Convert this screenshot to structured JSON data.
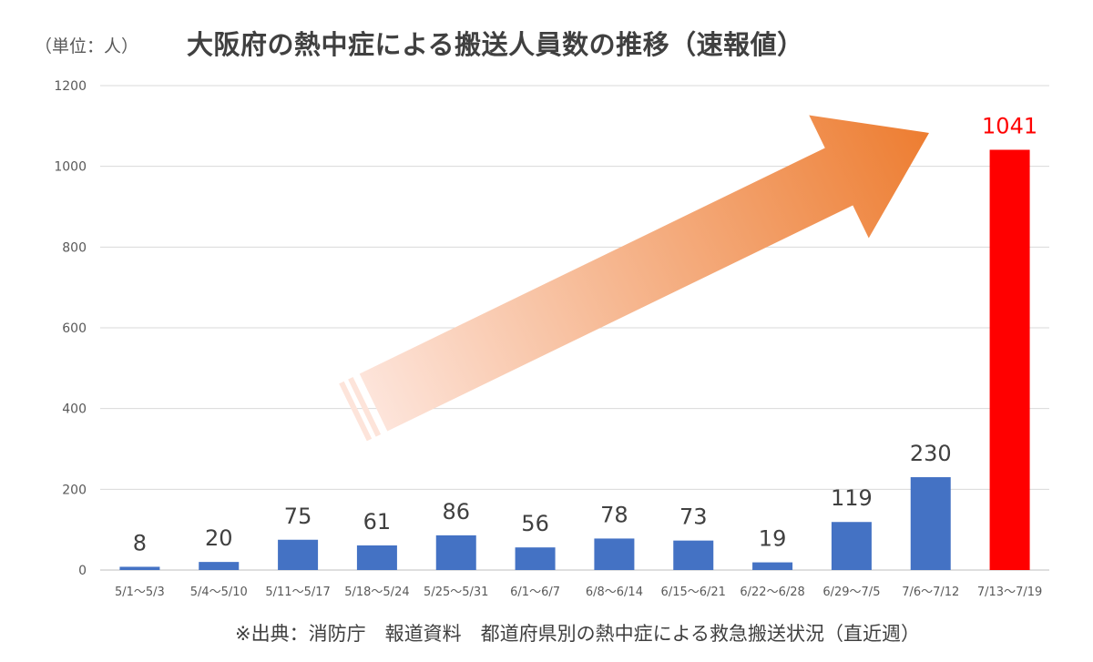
{
  "chart_data": {
    "type": "bar",
    "title": "大阪府の熱中症による搬送人員数の推移（速報値）",
    "unit_note": "（単位：人）",
    "source": "※出典：消防庁　報道資料　都道府県別の熱中症による救急搬送状況（直近週）",
    "categories": [
      "5/1～5/3",
      "5/4～5/10",
      "5/11～5/17",
      "5/18～5/24",
      "5/25～5/31",
      "6/1～6/7",
      "6/8～6/14",
      "6/15～6/21",
      "6/22～6/28",
      "6/29～7/5",
      "7/6～7/12",
      "7/13～7/19"
    ],
    "values": [
      8,
      20,
      75,
      61,
      86,
      56,
      78,
      73,
      19,
      119,
      230,
      1041
    ],
    "ylim": [
      0,
      1200
    ],
    "yticks": [
      0,
      200,
      400,
      600,
      800,
      1000,
      1200
    ],
    "grid": true,
    "bar_color": "#4472c4",
    "highlight_color": "#ff0000",
    "highlight_index": 11,
    "arrow": {
      "direction": "up-right",
      "gradient_start": "#fde4da",
      "gradient_end": "#ed7d31"
    }
  }
}
